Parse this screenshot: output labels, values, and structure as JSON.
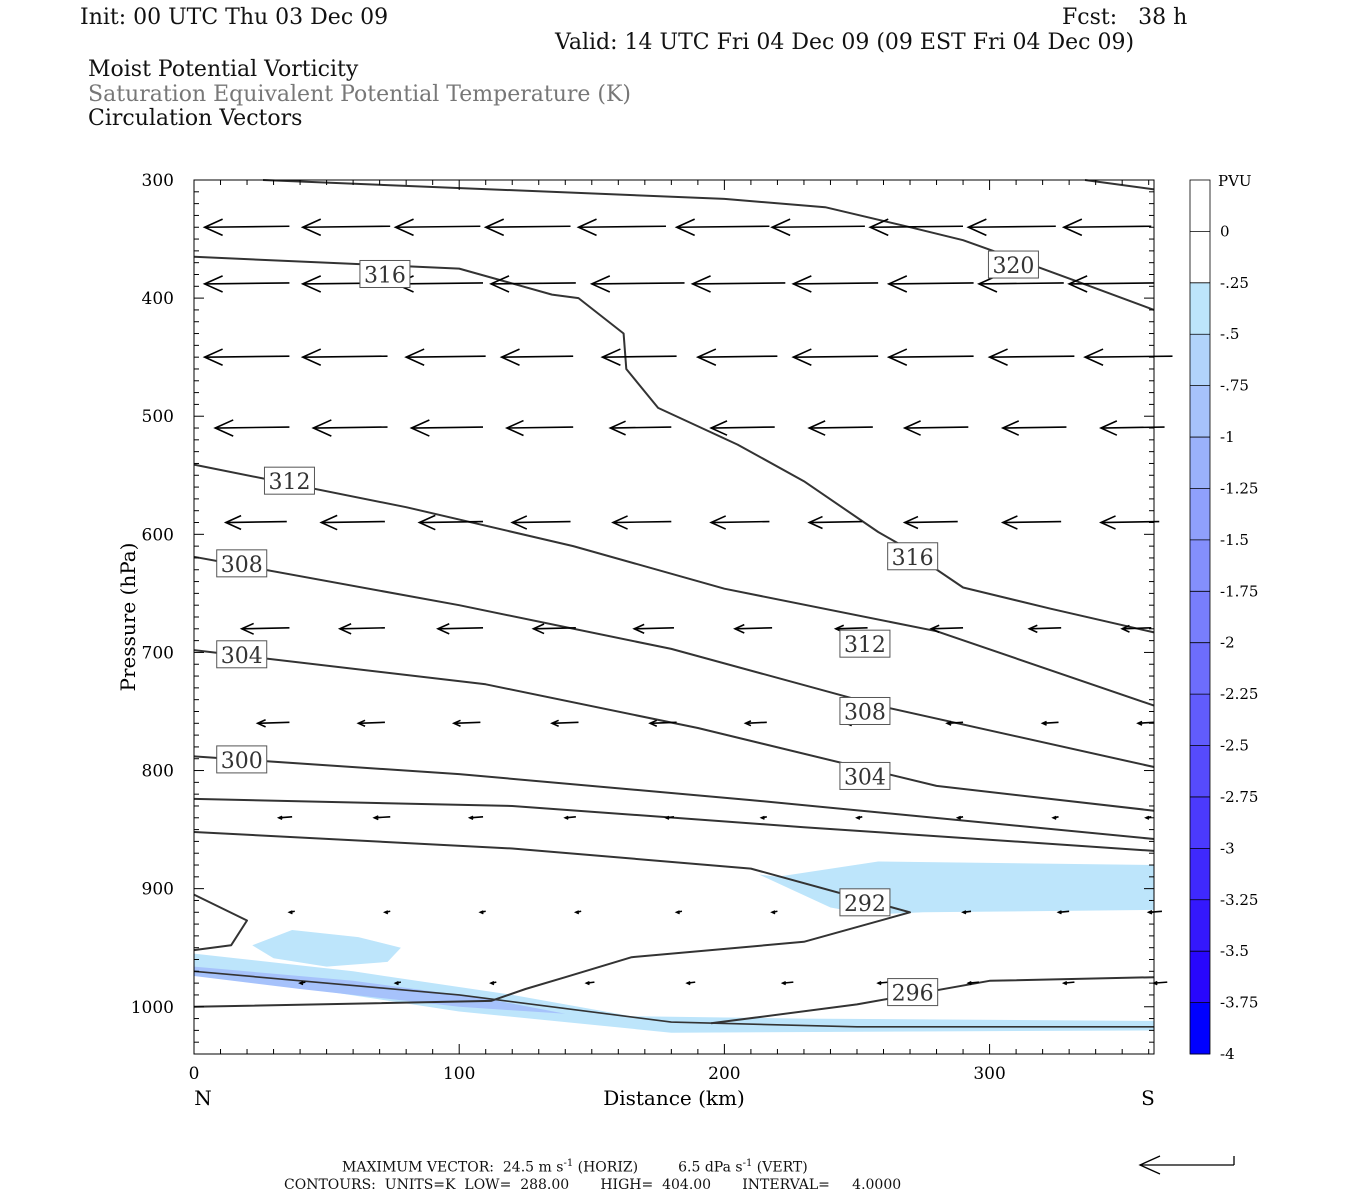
{
  "header": {
    "init": "Init: 00 UTC Thu 03 Dec 09",
    "fcst": "Fcst:   38 h",
    "valid": "Valid: 14 UTC Fri 04 Dec 09 (09 EST Fri 04 Dec 09)",
    "field1": "Moist Potential Vorticity",
    "field2": "Saturation Equivalent Potential Temperature (K)",
    "field3": "Circulation Vectors"
  },
  "footer": {
    "max_vector_label": "MAXIMUM VECTOR:",
    "horiz": "24.5 m s",
    "horiz_unit": "(HORIZ)",
    "vert": "6.5 dPa s",
    "vert_unit": "(VERT)",
    "exp": "-1",
    "contours": "CONTOURS:  UNITS=K  LOW=  288.00       HIGH=  404.00       INTERVAL=     4.0000"
  },
  "chart_data": {
    "type": "cross-section",
    "xlabel": "Distance (km)",
    "ylabel": "Pressure (hPa)",
    "xlim": [
      0,
      362
    ],
    "ylim": [
      1040,
      300
    ],
    "x_ticks": [
      0,
      100,
      200,
      300
    ],
    "y_ticks": [
      300,
      400,
      500,
      600,
      700,
      800,
      900,
      1000
    ],
    "left_end_label": "N",
    "right_end_label": "S",
    "colorbar": {
      "units": "PVU",
      "labels": [
        "0",
        "-.25",
        "-.5",
        "-.75",
        "-1",
        "-1.25",
        "-1.5",
        "-1.75",
        "-2",
        "-2.25",
        "-2.5",
        "-2.75",
        "-3",
        "-3.25",
        "-3.5",
        "-3.75",
        "-4"
      ],
      "colors": [
        "#ffffff",
        "#ffffff",
        "#bde5fb",
        "#b1d3fb",
        "#a6c2fb",
        "#9ab1fb",
        "#8fa0fc",
        "#848ffc",
        "#787efc",
        "#6d6dfc",
        "#615cfc",
        "#564bfc",
        "#4b3afd",
        "#3f29fd",
        "#3418fd",
        "#2807fd",
        "#0000ff"
      ]
    },
    "contour_labels": [
      {
        "text": "316",
        "x": 72,
        "p": 380
      },
      {
        "text": "320",
        "x": 309,
        "p": 372
      },
      {
        "text": "312",
        "x": 36,
        "p": 555
      },
      {
        "text": "316",
        "x": 271,
        "p": 619
      },
      {
        "text": "308",
        "x": 18,
        "p": 625
      },
      {
        "text": "312",
        "x": 253,
        "p": 693
      },
      {
        "text": "304",
        "x": 18,
        "p": 702
      },
      {
        "text": "308",
        "x": 253,
        "p": 750
      },
      {
        "text": "300",
        "x": 18,
        "p": 791
      },
      {
        "text": "304",
        "x": 253,
        "p": 805
      },
      {
        "text": "292",
        "x": 253,
        "p": 912
      },
      {
        "text": "296",
        "x": 271,
        "p": 988
      }
    ],
    "contours": [
      {
        "name": "320",
        "points": [
          [
            26,
            300
          ],
          [
            200,
            316
          ],
          [
            238,
            323
          ],
          [
            270,
            340
          ],
          [
            290,
            351
          ],
          [
            310,
            367
          ],
          [
            332,
            385
          ],
          [
            362,
            410
          ]
        ]
      },
      {
        "name": "upper-right",
        "points": [
          [
            336,
            300
          ],
          [
            362,
            308
          ]
        ]
      },
      {
        "name": "316",
        "points": [
          [
            0,
            365
          ],
          [
            100,
            375
          ],
          [
            135,
            397
          ],
          [
            145,
            400
          ],
          [
            162,
            430
          ],
          [
            163,
            460
          ],
          [
            175,
            493
          ],
          [
            205,
            524
          ],
          [
            230,
            555
          ],
          [
            258,
            598
          ],
          [
            265,
            607
          ],
          [
            290,
            645
          ],
          [
            323,
            663
          ],
          [
            362,
            683
          ]
        ]
      },
      {
        "name": "312",
        "points": [
          [
            0,
            541
          ],
          [
            80,
            577
          ],
          [
            143,
            610
          ],
          [
            200,
            646
          ],
          [
            280,
            682
          ],
          [
            362,
            745
          ]
        ]
      },
      {
        "name": "308",
        "points": [
          [
            0,
            619
          ],
          [
            100,
            660
          ],
          [
            180,
            697
          ],
          [
            260,
            746
          ],
          [
            362,
            797
          ]
        ]
      },
      {
        "name": "304",
        "points": [
          [
            0,
            698
          ],
          [
            110,
            727
          ],
          [
            190,
            764
          ],
          [
            280,
            813
          ],
          [
            362,
            834
          ]
        ]
      },
      {
        "name": "300",
        "points": [
          [
            0,
            788
          ],
          [
            100,
            803
          ],
          [
            210,
            825
          ],
          [
            362,
            858
          ]
        ]
      },
      {
        "name": "296",
        "points": [
          [
            0,
            824
          ],
          [
            120,
            830
          ],
          [
            230,
            848
          ],
          [
            362,
            868
          ]
        ]
      },
      {
        "name": "292",
        "points": [
          [
            0,
            852
          ],
          [
            120,
            866
          ],
          [
            210,
            883
          ],
          [
            270,
            920
          ],
          [
            230,
            945
          ],
          [
            165,
            958
          ],
          [
            140,
            975
          ],
          [
            125,
            985
          ],
          [
            112,
            995
          ],
          [
            0,
            1000
          ]
        ]
      },
      {
        "name": "296-low",
        "points": [
          [
            195,
            1014
          ],
          [
            250,
            998
          ],
          [
            300,
            978
          ],
          [
            362,
            975
          ]
        ]
      },
      {
        "name": "left-bump",
        "points": [
          [
            0,
            905
          ],
          [
            20,
            927
          ],
          [
            14,
            948
          ],
          [
            0,
            952
          ]
        ]
      },
      {
        "name": "ground",
        "points": [
          [
            0,
            970
          ],
          [
            100,
            990
          ],
          [
            180,
            1013
          ],
          [
            250,
            1017
          ],
          [
            362,
            1017
          ]
        ]
      }
    ],
    "pv_regions": [
      {
        "level": "-.25 to -.5",
        "color": "#bde5fb",
        "points": [
          [
            213,
            888
          ],
          [
            220,
            890
          ],
          [
            258,
            877
          ],
          [
            362,
            880
          ],
          [
            362,
            918
          ],
          [
            275,
            920
          ],
          [
            255,
            922
          ],
          [
            240,
            916
          ]
        ]
      },
      {
        "name": "left-patch",
        "level": "-.25 to -.5",
        "color": "#bde5fb",
        "points": [
          [
            22,
            948
          ],
          [
            37,
            935
          ],
          [
            62,
            941
          ],
          [
            78,
            950
          ],
          [
            73,
            962
          ],
          [
            50,
            966
          ],
          [
            30,
            959
          ]
        ]
      },
      {
        "name": "surface-band",
        "level": "-.25 to -.5",
        "color": "#bde5fb",
        "points": [
          [
            0,
            955
          ],
          [
            60,
            970
          ],
          [
            120,
            990
          ],
          [
            165,
            1008
          ],
          [
            230,
            1010
          ],
          [
            362,
            1012
          ],
          [
            362,
            1020
          ],
          [
            180,
            1022
          ],
          [
            100,
            1004
          ],
          [
            0,
            970
          ]
        ]
      },
      {
        "name": "surface-band-core",
        "level": "-.5 to -.75",
        "color": "#a6c2fb",
        "points": [
          [
            0,
            966
          ],
          [
            60,
            978
          ],
          [
            110,
            993
          ],
          [
            140,
            1006
          ],
          [
            100,
            1000
          ],
          [
            40,
            985
          ],
          [
            0,
            974
          ]
        ]
      }
    ],
    "vectors": {
      "rows": [
        {
          "p": 340,
          "x": [
            4,
            41,
            76,
            110,
            145,
            182,
            218,
            255,
            292,
            328
          ],
          "len": [
            32,
            33,
            32,
            32,
            33,
            35,
            35,
            35,
            33,
            33
          ]
        },
        {
          "p": 388,
          "x": [
            4,
            41,
            76,
            112,
            150,
            188,
            226,
            262,
            296,
            330
          ],
          "len": [
            32,
            33,
            33,
            32,
            35,
            35,
            32,
            32,
            32,
            32
          ]
        },
        {
          "p": 450,
          "x": [
            4,
            41,
            80,
            116,
            154,
            190,
            226,
            262,
            300,
            336
          ],
          "len": [
            32,
            32,
            30,
            27,
            28,
            30,
            32,
            32,
            32,
            33
          ]
        },
        {
          "p": 510,
          "x": [
            8,
            45,
            82,
            118,
            157,
            195,
            232,
            268,
            305,
            342
          ],
          "len": [
            28,
            28,
            27,
            25,
            23,
            24,
            24,
            24,
            24,
            24
          ]
        },
        {
          "p": 590,
          "x": [
            12,
            48,
            85,
            120,
            158,
            195,
            232,
            268,
            305,
            342
          ],
          "len": [
            23,
            24,
            24,
            22,
            22,
            22,
            20,
            20,
            22,
            22
          ]
        },
        {
          "p": 680,
          "x": [
            18,
            55,
            92,
            128,
            166,
            204,
            242,
            278,
            315,
            350
          ],
          "len": [
            18,
            17,
            17,
            16,
            15,
            14,
            12,
            12,
            12,
            11
          ]
        },
        {
          "p": 760,
          "x": [
            24,
            62,
            98,
            135,
            172,
            208,
            246,
            284,
            320,
            356
          ],
          "len": [
            12,
            10,
            10,
            10,
            10,
            8,
            8,
            6,
            6,
            6
          ]
        },
        {
          "p": 840,
          "x": [
            32,
            68,
            104,
            140,
            178,
            214,
            250,
            288,
            324,
            359
          ],
          "len": [
            5,
            6,
            5,
            4,
            3,
            2,
            2,
            2,
            2,
            2
          ]
        },
        {
          "p": 920,
          "x": [
            36,
            72,
            108,
            144,
            182,
            218,
            255,
            290,
            326,
            360
          ],
          "len": [
            2,
            2,
            2,
            2,
            2,
            2,
            3,
            3,
            4,
            5
          ]
        },
        {
          "p": 980,
          "x": [
            40,
            76,
            112,
            148,
            186,
            222,
            258,
            292,
            328,
            362
          ],
          "len": [
            2,
            2,
            2,
            3,
            3,
            4,
            4,
            4,
            4,
            5
          ]
        }
      ]
    }
  }
}
